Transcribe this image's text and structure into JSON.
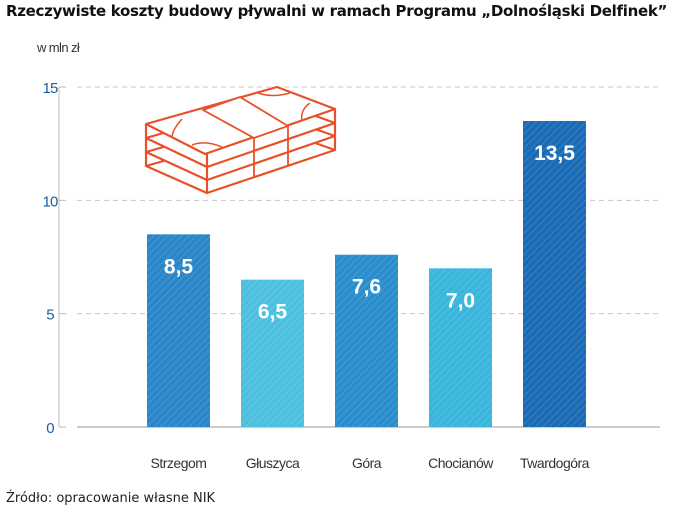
{
  "title": "Rzeczywiste koszty budowy pływalni w ramach Programu „Dolnośląski Delfinek”",
  "source": "Źródło: opracowanie własne NIK",
  "chart_data": {
    "type": "bar",
    "title": "Rzeczywiste koszty budowy pływalni w ramach Programu „Dolnośląski Delfinek”",
    "ylabel": "w mln zł",
    "xlabel": "",
    "ylim": [
      0,
      15
    ],
    "yticks": [
      0,
      5,
      10,
      15
    ],
    "grid": true,
    "categories": [
      "Strzegom",
      "Głuszyca",
      "Góra",
      "Chocianów",
      "Twardogóra"
    ],
    "values": [
      8.5,
      6.5,
      7.6,
      7.0,
      13.5
    ],
    "data_labels": [
      "8,5",
      "6,5",
      "7,6",
      "7,0",
      "13,5"
    ],
    "bar_colors": [
      "#2a86c8",
      "#4cc0de",
      "#2a8dcc",
      "#3ab5dc",
      "#1a6bb5"
    ],
    "icon": "money-stack-icon",
    "icon_color": "#e8502a",
    "tick_color": "#1a5fa0"
  }
}
